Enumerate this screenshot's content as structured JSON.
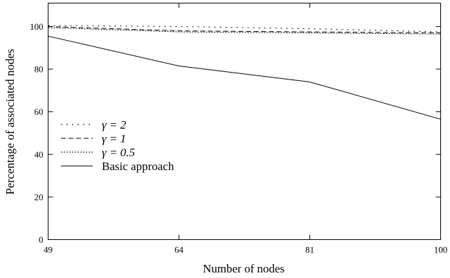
{
  "chart_data": {
    "type": "line",
    "x": [
      49,
      64,
      81,
      100
    ],
    "xticks": [
      "49",
      "64",
      "81",
      "100"
    ],
    "yticks": [
      "0",
      "20",
      "40",
      "60",
      "80",
      "100"
    ],
    "ytick_values": [
      0,
      20,
      40,
      60,
      80,
      100
    ],
    "xlabel": "Number of nodes",
    "ylabel": "Percentage of associated nodes",
    "ylim": [
      0,
      111
    ],
    "grid": false,
    "legend_position": "left",
    "series": [
      {
        "name": "γ = 2",
        "values": [
          100.5,
          100,
          99,
          97.5
        ],
        "dash": "2 6"
      },
      {
        "name": "γ = 1",
        "values": [
          100,
          98,
          97.5,
          97
        ],
        "dash": "7 4"
      },
      {
        "name": "γ = 0.5",
        "values": [
          99.5,
          97.5,
          97,
          96.5
        ],
        "dash": "2 2"
      },
      {
        "name": "Basic approach",
        "values": [
          95.5,
          81.5,
          74,
          56.5
        ],
        "dash": ""
      }
    ]
  }
}
